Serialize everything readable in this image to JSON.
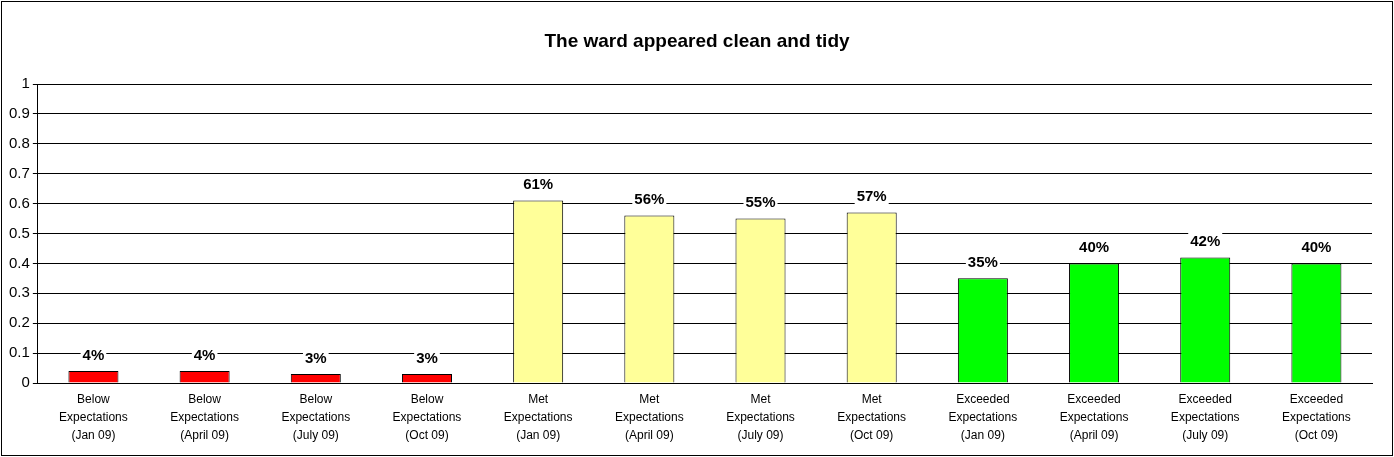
{
  "chart_data": {
    "type": "bar",
    "title": "The ward appeared clean and tidy",
    "categories": [
      "Below Expectations (Jan 09)",
      "Below Expectations (April 09)",
      "Below Expectations (July 09)",
      "Below Expectations (Oct 09)",
      "Met Expectations (Jan 09)",
      "Met Expectations (April 09)",
      "Met Expectations (July 09)",
      "Met Expectations (Oct 09)",
      "Exceeded Expectations (Jan 09)",
      "Exceeded Expectations (April 09)",
      "Exceeded Expectations (July 09)",
      "Exceeded Expectations (Oct 09)"
    ],
    "values": [
      0.04,
      0.04,
      0.03,
      0.03,
      0.61,
      0.56,
      0.55,
      0.57,
      0.35,
      0.4,
      0.42,
      0.4
    ],
    "value_labels": [
      "4%",
      "4%",
      "3%",
      "3%",
      "61%",
      "56%",
      "55%",
      "57%",
      "35%",
      "40%",
      "42%",
      "40%"
    ],
    "colors": [
      "#ff0000",
      "#ff0000",
      "#ff0000",
      "#ff0000",
      "#ffff99",
      "#ffff99",
      "#ffff99",
      "#ffff99",
      "#00ff00",
      "#00ff00",
      "#00ff00",
      "#00ff00"
    ],
    "ylim": [
      0,
      1
    ],
    "yticks": [
      0,
      0.1,
      0.2,
      0.3,
      0.4,
      0.5,
      0.6,
      0.7,
      0.8,
      0.9,
      1
    ],
    "grid": "y",
    "legend": false
  }
}
